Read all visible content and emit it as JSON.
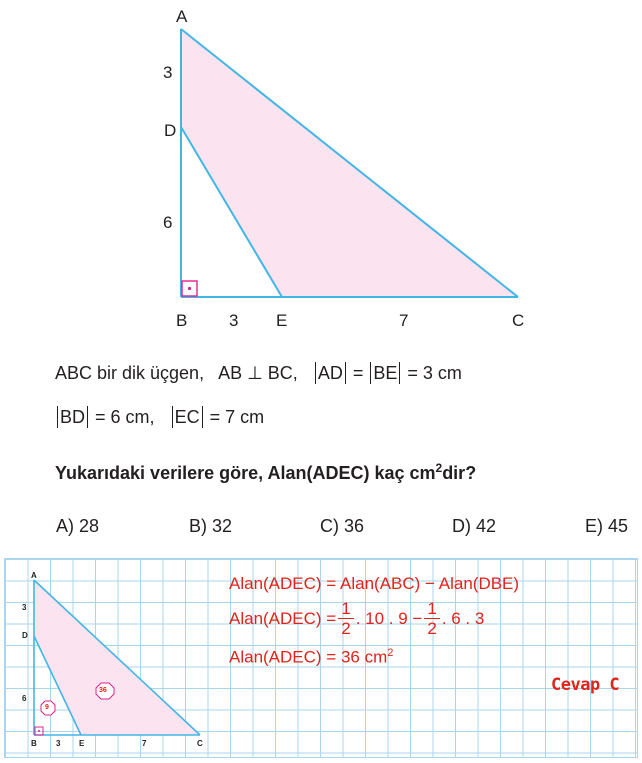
{
  "figure": {
    "vertices": {
      "A": "A",
      "B": "B",
      "C": "C",
      "D": "D",
      "E": "E"
    },
    "segment_labels": {
      "AD": "3",
      "DB": "6",
      "BE": "3",
      "EC": "7"
    },
    "colors": {
      "stroke": "#41b6e6",
      "fill": "#fbe3ef",
      "right_angle": "#e0218a"
    }
  },
  "problem": {
    "line1": {
      "intro": "ABC bir dik üçgen,",
      "perp": "AB ⊥ BC,",
      "ad": "AD",
      "eq1": "=",
      "be": "BE",
      "value1": "= 3 cm"
    },
    "line2": {
      "bd": "BD",
      "value_bd": "= 6 cm,",
      "ec": "EC",
      "value_ec": "= 7 cm"
    },
    "question": {
      "text": "Yukarıdaki verilere göre,  Alan(ADEC) kaç cm",
      "sup": "2",
      "tail": "dir?"
    },
    "options": [
      {
        "label": "A) 28"
      },
      {
        "label": "B) 32"
      },
      {
        "label": "C) 36"
      },
      {
        "label": "D) 42"
      },
      {
        "label": "E) 45"
      }
    ]
  },
  "solution": {
    "line1": "Alan(ADEC) = Alan(ABC) − Alan(DBE)",
    "line2": {
      "prefix": "Alan(ADEC) =",
      "frac1_num": "1",
      "frac1_den": "2",
      "middle": ". 10 . 9 −",
      "frac2_num": "1",
      "frac2_den": "2",
      "suffix": ". 6 . 3"
    },
    "line3": {
      "text": "Alan(ADEC) = 36 cm",
      "sup": "2"
    },
    "answer": "Cevap C",
    "small_figure": {
      "vertices": {
        "A": "A",
        "B": "B",
        "C": "C",
        "D": "D",
        "E": "E"
      },
      "segment_labels": {
        "AD": "3",
        "DB": "6",
        "BE": "3",
        "EC": "7"
      },
      "badge_small": "9",
      "badge_large": "36"
    },
    "colors": {
      "text": "#e2231a",
      "grid": "#a9d6ef"
    }
  }
}
